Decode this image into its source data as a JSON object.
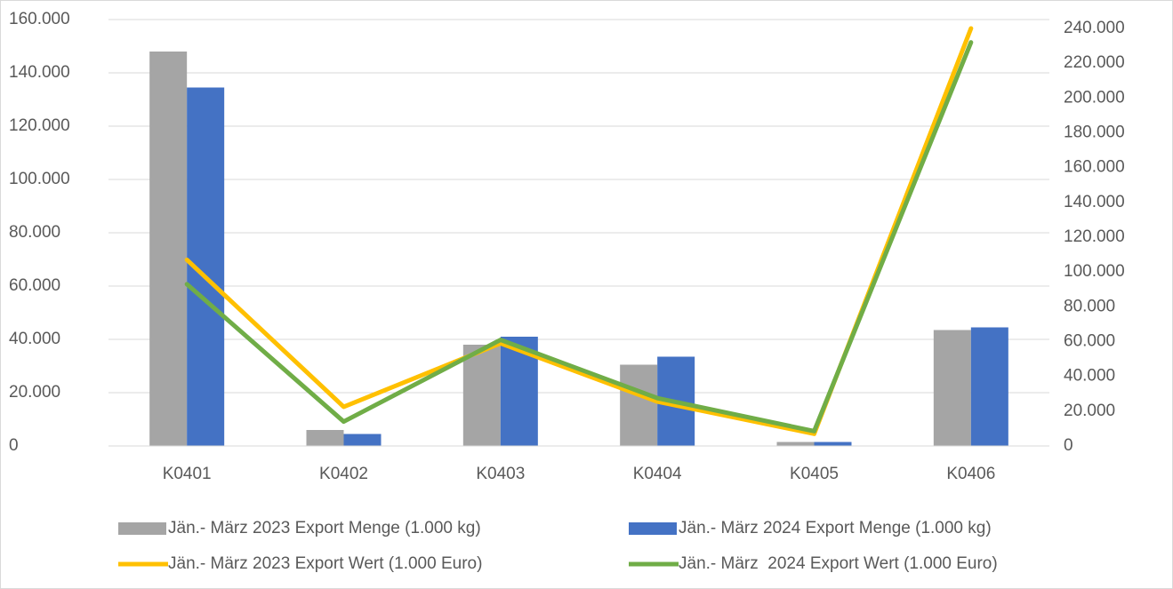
{
  "chart_data": {
    "type": "bar",
    "categories": [
      "K0401",
      "K0402",
      "K0403",
      "K0404",
      "K0405",
      "K0406"
    ],
    "series": [
      {
        "name": "Jän.- März 2023 Export Menge (1.000 kg)",
        "type": "bar",
        "color": "#a5a5a5",
        "values": [
          148000,
          6000,
          38000,
          30500,
          1500,
          43500
        ]
      },
      {
        "name": "Jän.- März 2024 Export Menge (1.000 kg)",
        "type": "bar",
        "color": "#4472c4",
        "values": [
          134500,
          4500,
          41000,
          33500,
          1500,
          44500
        ]
      },
      {
        "name": "Jän.- März 2023 Export Wert (1.000 Euro)",
        "type": "line",
        "axis": "y2",
        "color": "#ffc000",
        "values": [
          107000,
          22500,
          59000,
          25500,
          7000,
          240000
        ]
      },
      {
        "name": "Jän.- März  2024 Export Wert (1.000 Euro)",
        "type": "line",
        "axis": "y2",
        "color": "#70ad47",
        "values": [
          93000,
          14000,
          61000,
          27500,
          8500,
          232000
        ]
      }
    ],
    "ylim": [
      0,
      160000
    ],
    "yticks": [
      0,
      {
        "value": 20000,
        "label": "20.000"
      },
      {
        "value": 40000,
        "label": "40.000"
      },
      {
        "value": 60000,
        "label": "60.000"
      },
      {
        "value": 80000,
        "label": "80.000"
      },
      {
        "value": 100000,
        "label": "100.000"
      },
      {
        "value": 120000,
        "label": "120.000"
      },
      {
        "value": 140000,
        "label": "140.000"
      },
      {
        "value": 160000,
        "label": "160.000"
      }
    ],
    "y2lim": [
      0,
      240000
    ],
    "y2ticks": [
      0,
      {
        "value": 20000,
        "label": "20.000"
      },
      {
        "value": 40000,
        "label": "40.000"
      },
      {
        "value": 60000,
        "label": "60.000"
      },
      {
        "value": 80000,
        "label": "80.000"
      },
      {
        "value": 100000,
        "label": "100.000"
      },
      {
        "value": 120000,
        "label": "120.000"
      },
      {
        "value": 140000,
        "label": "140.000"
      },
      {
        "value": 160000,
        "label": "160.000"
      },
      {
        "value": 180000,
        "label": "180.000"
      },
      {
        "value": 200000,
        "label": "200.000"
      },
      {
        "value": 220000,
        "label": "220.000"
      },
      {
        "value": 240000,
        "label": "240.000"
      }
    ],
    "grid": true,
    "legend": "bottom"
  }
}
